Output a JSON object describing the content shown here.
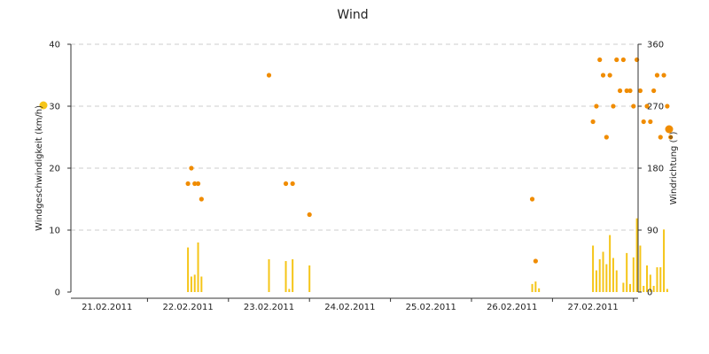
{
  "chart_data": {
    "type": "bar",
    "title": "Wind",
    "ylabel_left": "Windgeschwindigkeit (km/h)",
    "ylabel_right": "Windrichtung (°)",
    "x_ticks": [
      "21.02.2011",
      "22.02.2011",
      "23.02.2011",
      "24.02.2011",
      "25.02.2011",
      "26.02.2011",
      "27.02.2011"
    ],
    "ylim_left": [
      0,
      40
    ],
    "yticks_left": [
      "0",
      "10",
      "20",
      "30",
      "40"
    ],
    "ylim_right": [
      0,
      360
    ],
    "yticks_right": [
      "0",
      "90",
      "180",
      "270",
      "360"
    ],
    "grid": true,
    "colors": {
      "speed": "#f5c518",
      "direction": "#f08c00",
      "grid": "#cccccc",
      "axis": "#333333"
    },
    "series": [
      {
        "kind": "bar",
        "axis": "left",
        "points": [
          {
            "x": "22.02.2011 00:00",
            "y": 7.2
          },
          {
            "x": "22.02.2011 01:00",
            "y": 2.5
          },
          {
            "x": "22.02.2011 02:00",
            "y": 2.8
          },
          {
            "x": "22.02.2011 03:00",
            "y": 8.0
          },
          {
            "x": "22.02.2011 04:00",
            "y": 2.5
          },
          {
            "x": "23.02.2011 00:00",
            "y": 5.3
          },
          {
            "x": "23.02.2011 05:00",
            "y": 5.0
          },
          {
            "x": "23.02.2011 06:00",
            "y": 0.5
          },
          {
            "x": "23.02.2011 07:00",
            "y": 5.3
          },
          {
            "x": "23.02.2011 12:00",
            "y": 4.3
          },
          {
            "x": "26.02.2011 06:00",
            "y": 1.3
          },
          {
            "x": "26.02.2011 07:00",
            "y": 1.7
          },
          {
            "x": "26.02.2011 08:00",
            "y": 0.6
          },
          {
            "x": "27.02.2011 00:00",
            "y": 7.5
          },
          {
            "x": "27.02.2011 01:00",
            "y": 3.5
          },
          {
            "x": "27.02.2011 02:00",
            "y": 5.3
          },
          {
            "x": "27.02.2011 03:00",
            "y": 6.5
          },
          {
            "x": "27.02.2011 04:00",
            "y": 4.5
          },
          {
            "x": "27.02.2011 05:00",
            "y": 9.2
          },
          {
            "x": "27.02.2011 06:00",
            "y": 5.5
          },
          {
            "x": "27.02.2011 07:00",
            "y": 3.5
          },
          {
            "x": "27.02.2011 09:00",
            "y": 1.5
          },
          {
            "x": "27.02.2011 10:00",
            "y": 6.3
          },
          {
            "x": "27.02.2011 11:00",
            "y": 1.3
          },
          {
            "x": "27.02.2011 12:00",
            "y": 5.6
          },
          {
            "x": "27.02.2011 13:00",
            "y": 11.9
          },
          {
            "x": "27.02.2011 14:00",
            "y": 7.5
          },
          {
            "x": "27.02.2011 15:00",
            "y": 1.0
          },
          {
            "x": "27.02.2011 16:00",
            "y": 4.3
          },
          {
            "x": "27.02.2011 17:00",
            "y": 2.8
          },
          {
            "x": "27.02.2011 18:00",
            "y": 1.0
          },
          {
            "x": "27.02.2011 19:00",
            "y": 4.0
          },
          {
            "x": "27.02.2011 20:00",
            "y": 4.0
          },
          {
            "x": "27.02.2011 21:00",
            "y": 10.1
          },
          {
            "x": "27.02.2011 22:00",
            "y": 0.5
          }
        ]
      },
      {
        "kind": "scatter",
        "axis": "right",
        "points": [
          {
            "x": "22.02.2011 00:00",
            "y": 157.5
          },
          {
            "x": "22.02.2011 01:00",
            "y": 180
          },
          {
            "x": "22.02.2011 02:00",
            "y": 157.5
          },
          {
            "x": "22.02.2011 03:00",
            "y": 157.5
          },
          {
            "x": "22.02.2011 04:00",
            "y": 135
          },
          {
            "x": "23.02.2011 00:00",
            "y": 315
          },
          {
            "x": "23.02.2011 05:00",
            "y": 157.5
          },
          {
            "x": "23.02.2011 07:00",
            "y": 157.5
          },
          {
            "x": "23.02.2011 12:00",
            "y": 112.5
          },
          {
            "x": "26.02.2011 06:00",
            "y": 135
          },
          {
            "x": "26.02.2011 07:00",
            "y": 45
          },
          {
            "x": "27.02.2011 00:00",
            "y": 247.5
          },
          {
            "x": "27.02.2011 01:00",
            "y": 270
          },
          {
            "x": "27.02.2011 02:00",
            "y": 337.5
          },
          {
            "x": "27.02.2011 03:00",
            "y": 315
          },
          {
            "x": "27.02.2011 04:00",
            "y": 225
          },
          {
            "x": "27.02.2011 05:00",
            "y": 315
          },
          {
            "x": "27.02.2011 06:00",
            "y": 270
          },
          {
            "x": "27.02.2011 07:00",
            "y": 337.5
          },
          {
            "x": "27.02.2011 08:00",
            "y": 292.5
          },
          {
            "x": "27.02.2011 09:00",
            "y": 337.5
          },
          {
            "x": "27.02.2011 10:00",
            "y": 292.5
          },
          {
            "x": "27.02.2011 11:00",
            "y": 292.5
          },
          {
            "x": "27.02.2011 12:00",
            "y": 270
          },
          {
            "x": "27.02.2011 13:00",
            "y": 337.5
          },
          {
            "x": "27.02.2011 14:00",
            "y": 292.5
          },
          {
            "x": "27.02.2011 15:00",
            "y": 247.5
          },
          {
            "x": "27.02.2011 16:00",
            "y": 270
          },
          {
            "x": "27.02.2011 17:00",
            "y": 247.5
          },
          {
            "x": "27.02.2011 18:00",
            "y": 292.5
          },
          {
            "x": "27.02.2011 19:00",
            "y": 315
          },
          {
            "x": "27.02.2011 20:00",
            "y": 225
          },
          {
            "x": "27.02.2011 21:00",
            "y": 315
          },
          {
            "x": "27.02.2011 22:00",
            "y": 270
          },
          {
            "x": "27.02.2011 23:00",
            "y": 225
          }
        ]
      }
    ]
  }
}
